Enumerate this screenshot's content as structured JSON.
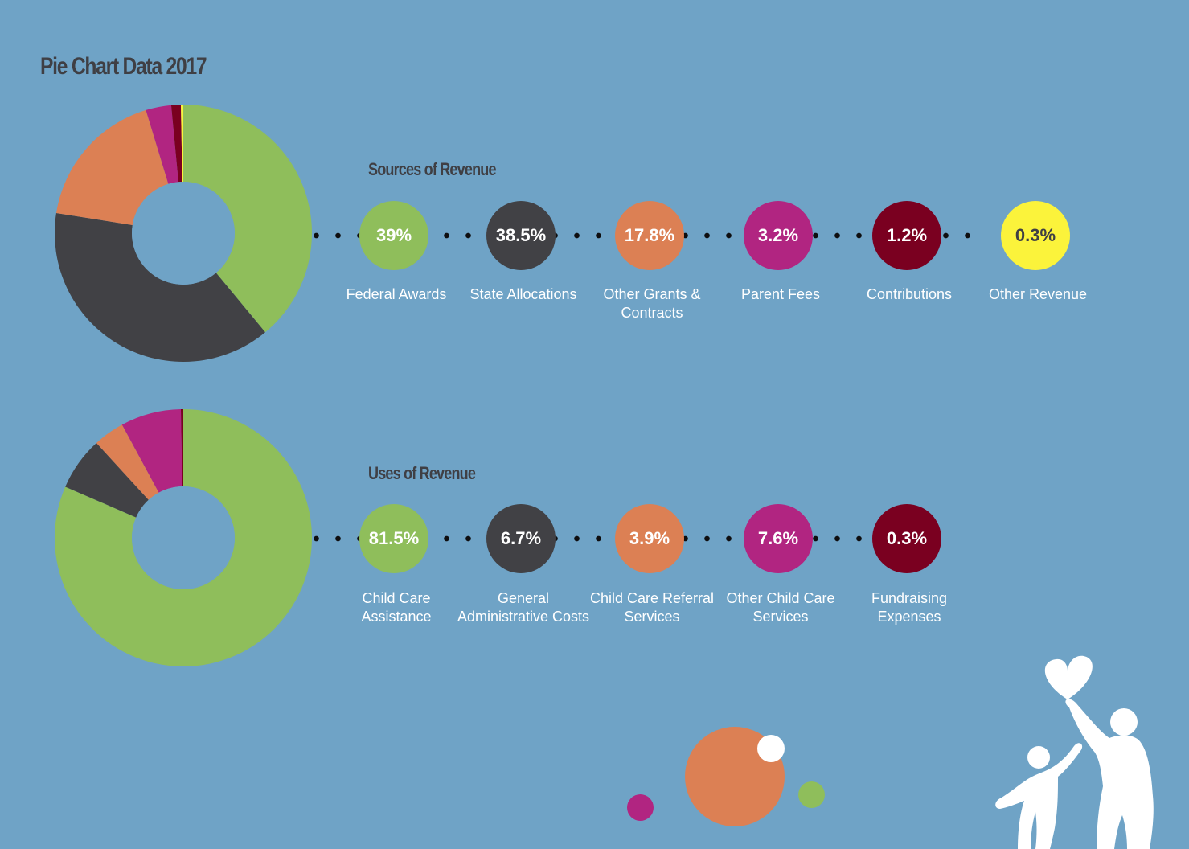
{
  "title": "Pie Chart Data 2017",
  "chart_data": [
    {
      "type": "pie",
      "title": "Sources of Revenue",
      "slices": [
        {
          "label": "Federal Awards",
          "display": "39%",
          "value": 39,
          "color": "#8fbe5b"
        },
        {
          "label": "State Allocations",
          "display": "38.5%",
          "value": 38.5,
          "color": "#414145"
        },
        {
          "label": "Other Grants & Contracts",
          "display": "17.8%",
          "value": 17.8,
          "color": "#dc8054"
        },
        {
          "label": "Parent Fees",
          "display": "3.2%",
          "value": 3.2,
          "color": "#b12581"
        },
        {
          "label": "Contributions",
          "display": "1.2%",
          "value": 1.2,
          "color": "#7a0020"
        },
        {
          "label": "Other Revenue",
          "display": "0.3%",
          "value": 0.3,
          "color": "#fbf33b"
        }
      ]
    },
    {
      "type": "pie",
      "title": "Uses of Revenue",
      "slices": [
        {
          "label": "Child Care Assistance",
          "display": "81.5%",
          "value": 81.5,
          "color": "#8fbe5b"
        },
        {
          "label": "General Administrative Costs",
          "display": "6.7%",
          "value": 6.7,
          "color": "#414145"
        },
        {
          "label": "Child Care Referral Services",
          "display": "3.9%",
          "value": 3.9,
          "color": "#dc8054"
        },
        {
          "label": "Other Child Care Services",
          "display": "7.6%",
          "value": 7.6,
          "color": "#b12581"
        },
        {
          "label": "Fundraising Expenses",
          "display": "0.3%",
          "value": 0.3,
          "color": "#7a0020"
        }
      ]
    }
  ],
  "decorations": {
    "circle_colors": [
      "#dc8054",
      "#ffffff",
      "#b12581",
      "#8fbe5b"
    ],
    "icons": [
      "heart-icon",
      "parent-child-icon"
    ]
  }
}
